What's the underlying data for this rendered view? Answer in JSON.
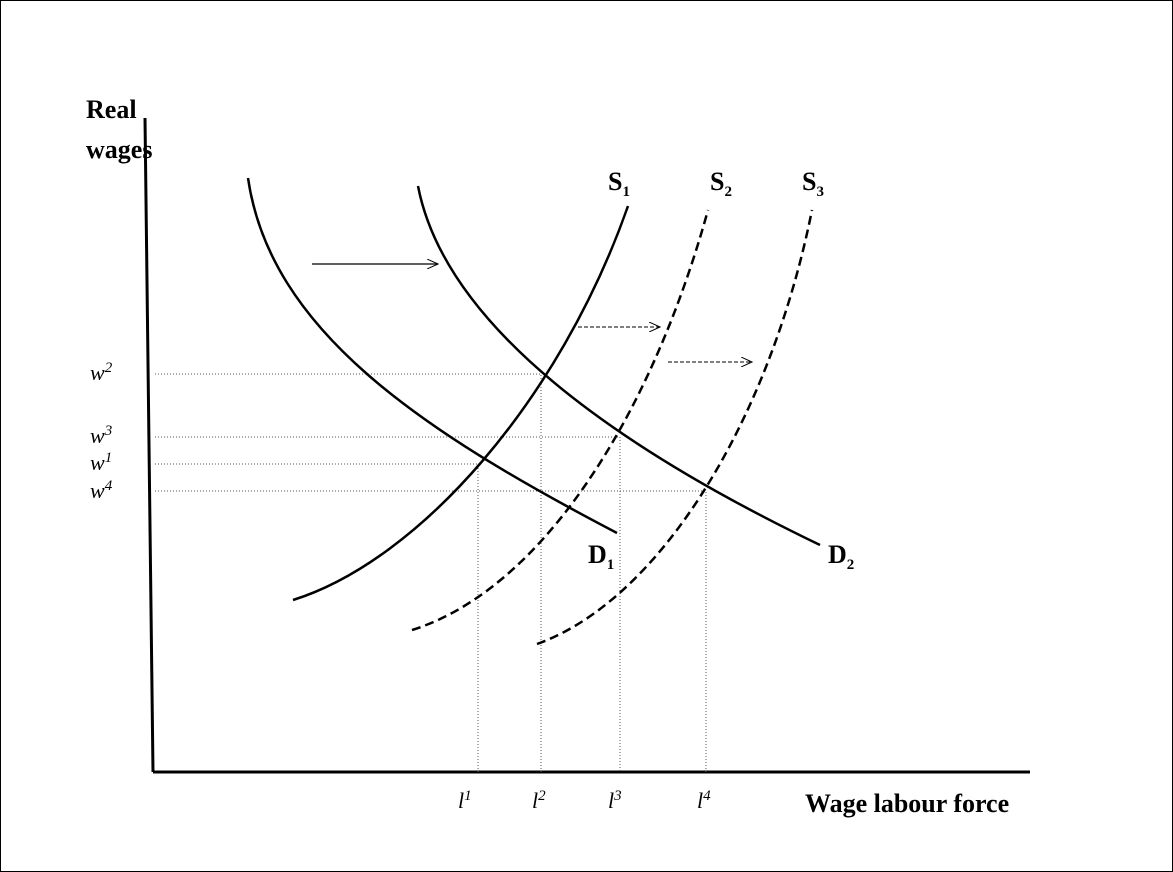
{
  "axes": {
    "y_label": [
      "Real",
      "wages"
    ],
    "x_label": "Wage labour force"
  },
  "wage_levels": [
    {
      "base": "w",
      "sup": "2"
    },
    {
      "base": "w",
      "sup": "3"
    },
    {
      "base": "w",
      "sup": "1"
    },
    {
      "base": "w",
      "sup": "4"
    }
  ],
  "labour_levels": [
    {
      "base": "l",
      "sup": "1"
    },
    {
      "base": "l",
      "sup": "2"
    },
    {
      "base": "l",
      "sup": "3"
    },
    {
      "base": "l",
      "sup": "4"
    }
  ],
  "curves": [
    {
      "base": "S",
      "sub": "1"
    },
    {
      "base": "S",
      "sub": "2"
    },
    {
      "base": "S",
      "sub": "3"
    },
    {
      "base": "D",
      "sub": "1"
    },
    {
      "base": "D",
      "sub": "2"
    }
  ]
}
